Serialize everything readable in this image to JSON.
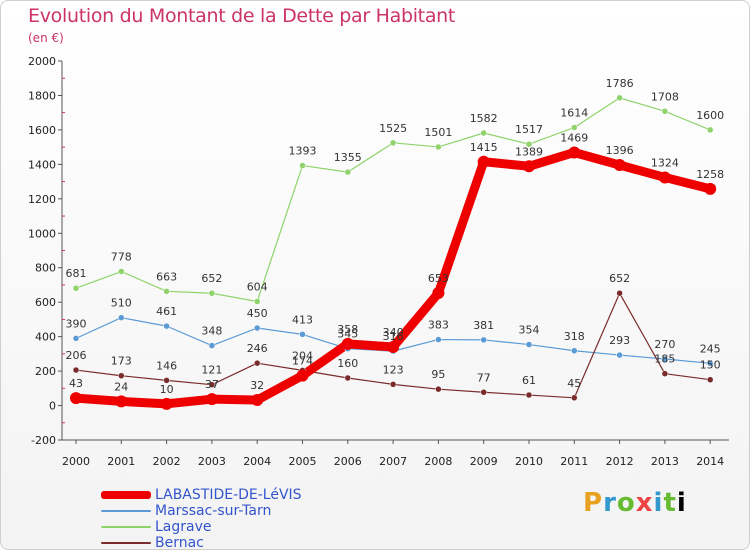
{
  "header": {
    "title": "Evolution du Montant de la Dette par Habitant",
    "subtitle": "(en €)"
  },
  "brand": {
    "text": "Proxiti"
  },
  "chart_data": {
    "type": "line",
    "x": [
      "2000",
      "2001",
      "2002",
      "2003",
      "2004",
      "2005",
      "2006",
      "2007",
      "2008",
      "2009",
      "2010",
      "2011",
      "2012",
      "2013",
      "2014"
    ],
    "ylim": [
      -200,
      2000
    ],
    "yticks": [
      "-200",
      "0",
      "200",
      "400",
      "600",
      "800",
      "1000",
      "1200",
      "1400",
      "1600",
      "1800",
      "2000"
    ],
    "grid": false,
    "legend_position": "bottom-left",
    "series": [
      {
        "name": "LABASTIDE-DE-LéVIS",
        "color": "#ee0000",
        "values": [
          43,
          24,
          10,
          37,
          32,
          174,
          358,
          340,
          653,
          1415,
          1389,
          1469,
          1396,
          1324,
          1258
        ],
        "labels": [
          "43",
          "24",
          "10",
          "",
          "32",
          "",
          "",
          "",
          "653",
          "1415",
          "1389",
          "1469",
          "1396",
          "1324",
          "1258"
        ]
      },
      {
        "name": "Marssac-sur-Tarn",
        "color": "#5b9bd5",
        "values": [
          390,
          510,
          461,
          348,
          450,
          413,
          330,
          316,
          383,
          381,
          354,
          318,
          293,
          270,
          245
        ],
        "labels": [
          "390",
          "510",
          "461",
          "348",
          "450",
          "413",
          "",
          "",
          "383",
          "381",
          "354",
          "318",
          "293",
          "270",
          "245"
        ]
      },
      {
        "name": "Lagrave",
        "color": "#8fd36a",
        "values": [
          681,
          778,
          663,
          652,
          604,
          1393,
          1355,
          1525,
          1501,
          1582,
          1517,
          1614,
          1786,
          1708,
          1600
        ],
        "labels": [
          "681",
          "778",
          "663",
          "652",
          "604",
          "1393",
          "1355",
          "1525",
          "1501",
          "1582",
          "1517",
          "1614",
          "1786",
          "1708",
          "1600"
        ]
      },
      {
        "name": "Bernac",
        "color": "#7a2c2c",
        "values": [
          206,
          173,
          146,
          121,
          246,
          204,
          160,
          123,
          95,
          77,
          61,
          45,
          652,
          185,
          150
        ],
        "labels": [
          "206",
          "173",
          "146",
          "121",
          "246",
          "204",
          "160",
          "123",
          "95",
          "77",
          "61",
          "45",
          "652",
          "185",
          "150"
        ]
      }
    ],
    "extra_labels": [
      "345",
      "358",
      "340",
      "316",
      "37",
      "174"
    ]
  }
}
